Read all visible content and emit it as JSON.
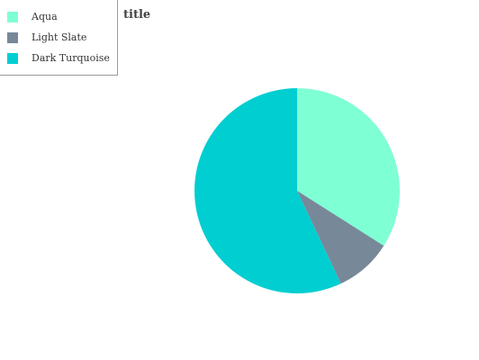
{
  "chart_data": {
    "type": "pie",
    "title": "title",
    "legend_position": "top-left",
    "series": [
      {
        "name": "Aqua",
        "value": 34,
        "color": "#7fffd4"
      },
      {
        "name": "Light Slate",
        "value": 9,
        "color": "#778899"
      },
      {
        "name": "Dark Turquoise",
        "value": 57,
        "color": "#00ced1"
      }
    ]
  }
}
